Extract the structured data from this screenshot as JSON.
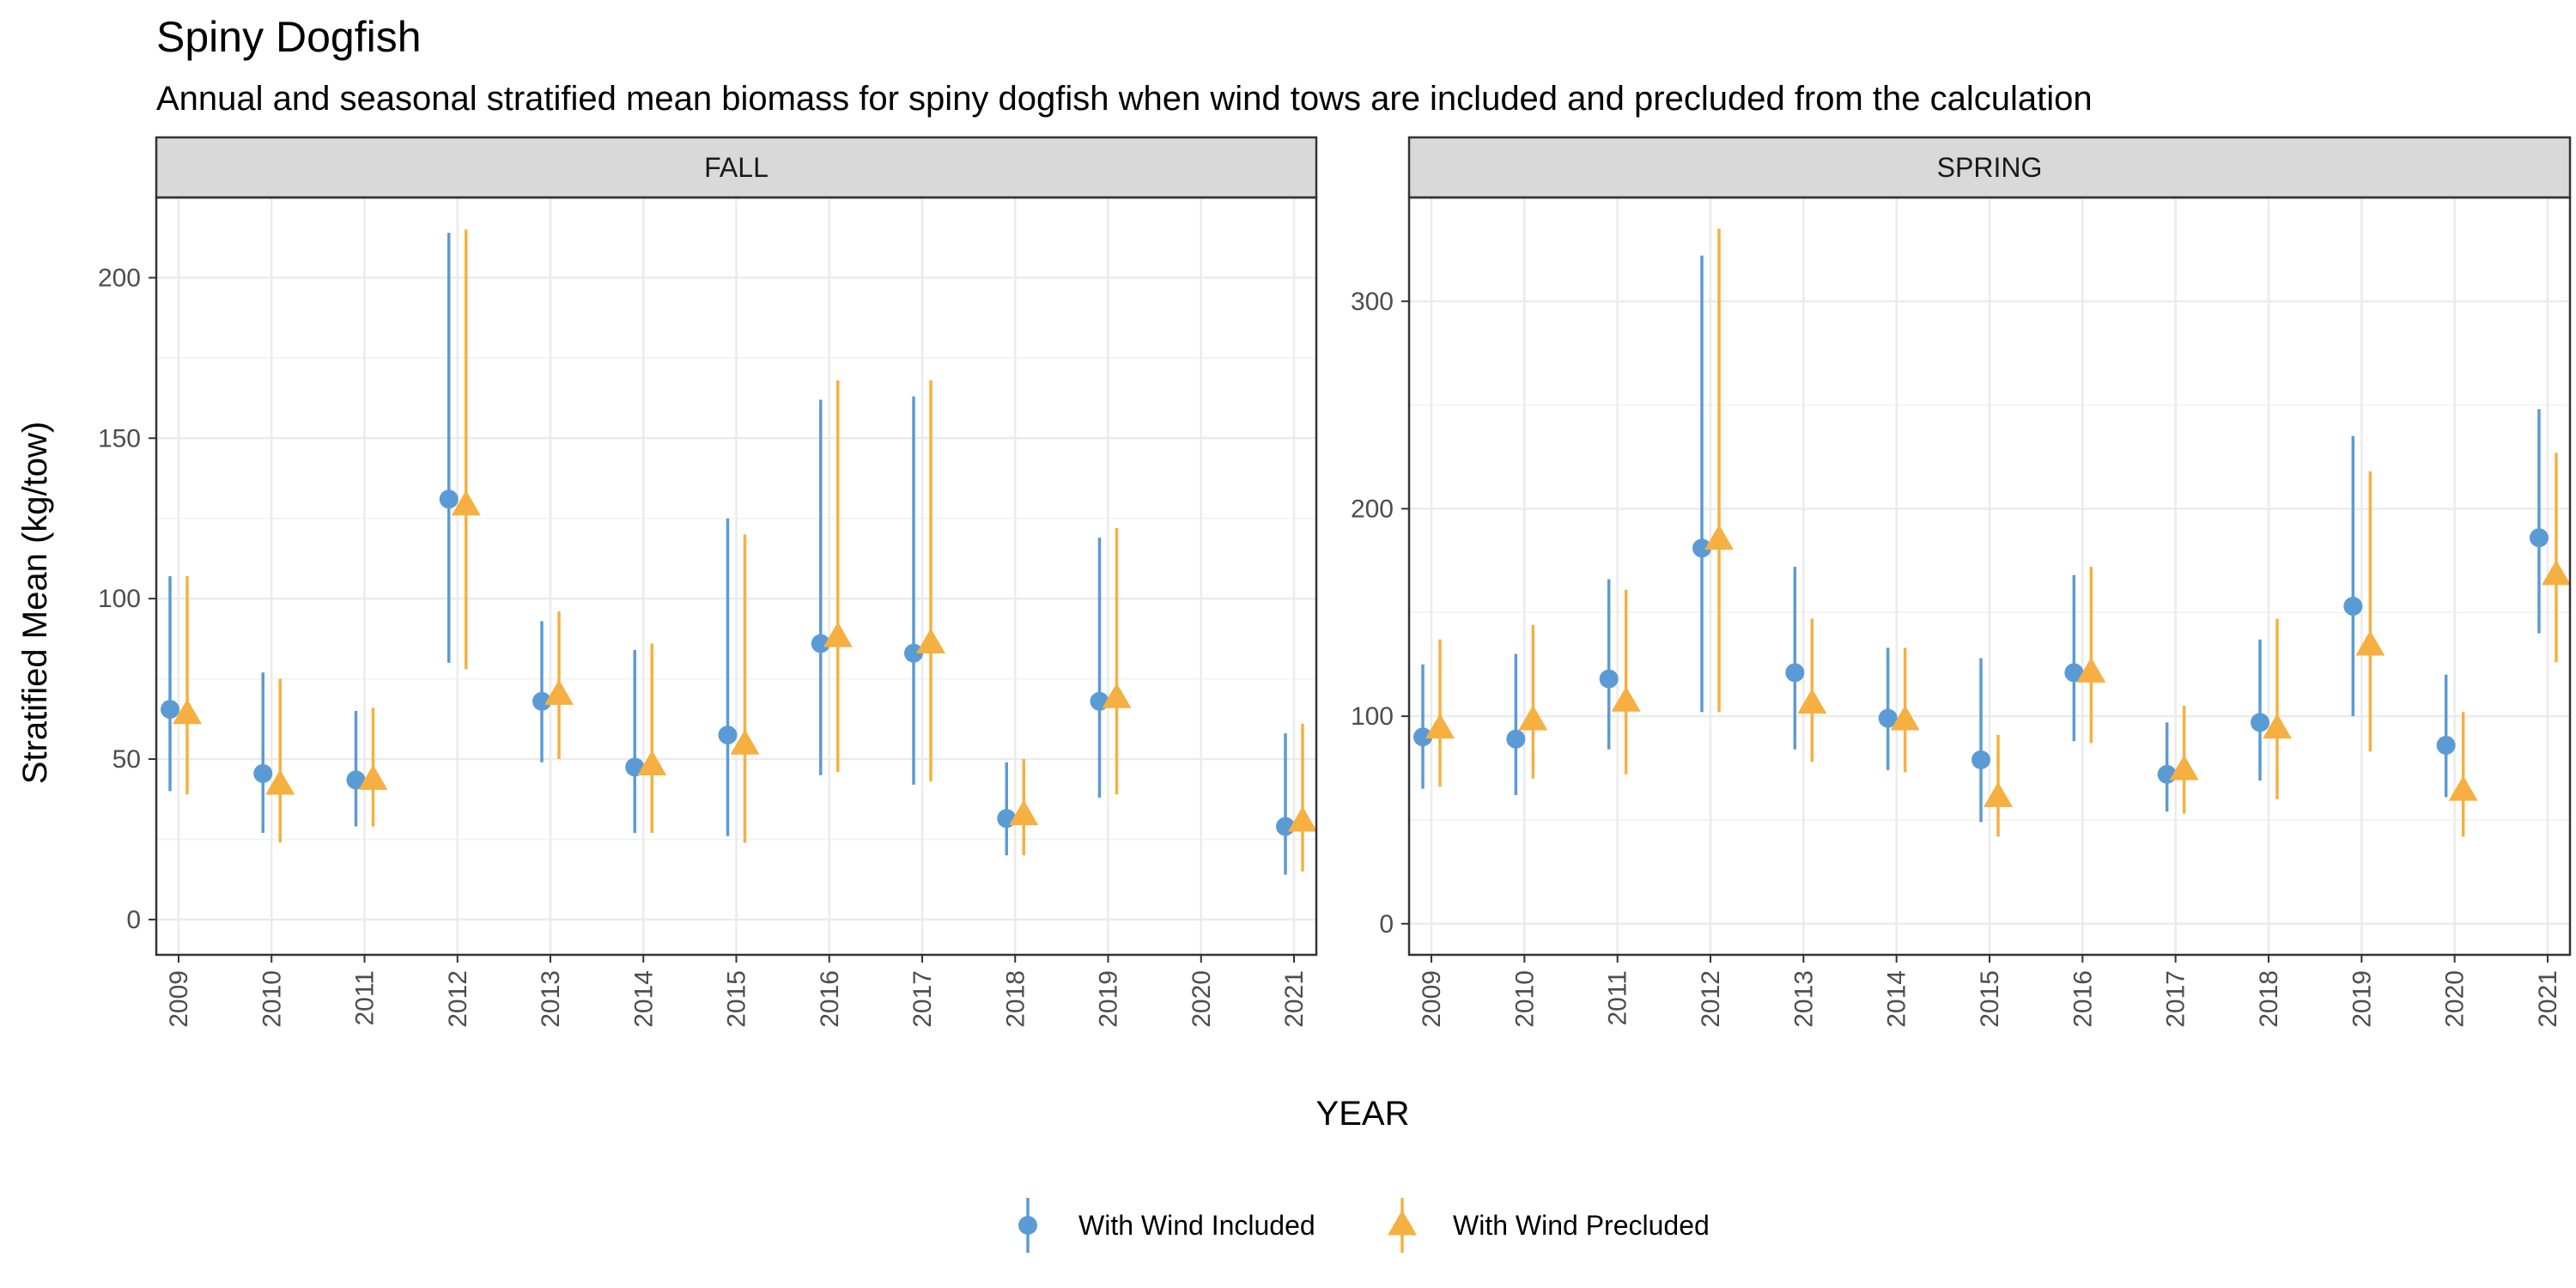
{
  "chart_data": {
    "type": "scatter",
    "title": "Spiny Dogfish",
    "subtitle": "Annual and seasonal stratified mean biomass for spiny dogfish when wind tows are included and precluded from the calculation",
    "xlabel": "YEAR",
    "ylabel": "Stratified Mean (kg/tow)",
    "categories": [
      "2009",
      "2010",
      "2011",
      "2012",
      "2013",
      "2014",
      "2015",
      "2016",
      "2017",
      "2018",
      "2019",
      "2020",
      "2021"
    ],
    "series_styles": [
      {
        "name": "With Wind Included",
        "color": "#5b9bd5",
        "marker": "circle"
      },
      {
        "name": "With Wind Precluded",
        "color": "#f5b041",
        "marker": "triangle"
      }
    ],
    "legend": {
      "position": "bottom",
      "items": [
        "With Wind Included",
        "With Wind Precluded"
      ]
    },
    "grid": true,
    "panels": [
      {
        "facet": "FALL",
        "ylim": [
          -11,
          225
        ],
        "yticks": [
          0,
          50,
          100,
          150,
          200
        ],
        "series": [
          {
            "name": "With Wind Included",
            "values": [
              65.5,
              45.5,
              43.5,
              131,
              68,
              47.5,
              57.5,
              86,
              83,
              31.5,
              68,
              null,
              29
            ],
            "lower": [
              40,
              27,
              29,
              80,
              49,
              27,
              26,
              45,
              42,
              20,
              38,
              null,
              14
            ],
            "upper": [
              107,
              77,
              65,
              214,
              93,
              84,
              125,
              162,
              163,
              49,
              119,
              null,
              58
            ]
          },
          {
            "name": "With Wind Precluded",
            "values": [
              64,
              42,
              43.5,
              129,
              70,
              48,
              54.5,
              88,
              86,
              32.5,
              69,
              null,
              30.5
            ],
            "lower": [
              39,
              24,
              29,
              78,
              50,
              27,
              24,
              46,
              43,
              20,
              39,
              null,
              15
            ],
            "upper": [
              107,
              75,
              66,
              215,
              96,
              86,
              120,
              168,
              168,
              50,
              122,
              null,
              61
            ]
          }
        ]
      },
      {
        "facet": "SPRING",
        "ylim": [
          -15,
          350
        ],
        "yticks": [
          0,
          100,
          200,
          300
        ],
        "series": [
          {
            "name": "With Wind Included",
            "values": [
              90,
              89,
              118,
              181,
              121,
              99,
              79,
              121,
              72,
              97,
              153,
              86,
              186
            ],
            "lower": [
              65,
              62,
              84,
              102,
              84,
              74,
              49,
              88,
              54,
              69,
              100,
              61,
              140
            ],
            "upper": [
              125,
              130,
              166,
              322,
              172,
              133,
              128,
              168,
              97,
              137,
              235,
              120,
              248
            ]
          },
          {
            "name": "With Wind Precluded",
            "values": [
              94,
              98,
              107,
              185,
              106,
              98,
              61,
              121,
              74,
              94,
              134,
              64,
              168
            ],
            "lower": [
              66,
              70,
              72,
              102,
              78,
              73,
              42,
              87,
              53,
              60,
              83,
              42,
              126
            ],
            "upper": [
              137,
              144,
              161,
              335,
              147,
              133,
              91,
              172,
              105,
              147,
              218,
              102,
              227
            ]
          }
        ]
      }
    ]
  }
}
